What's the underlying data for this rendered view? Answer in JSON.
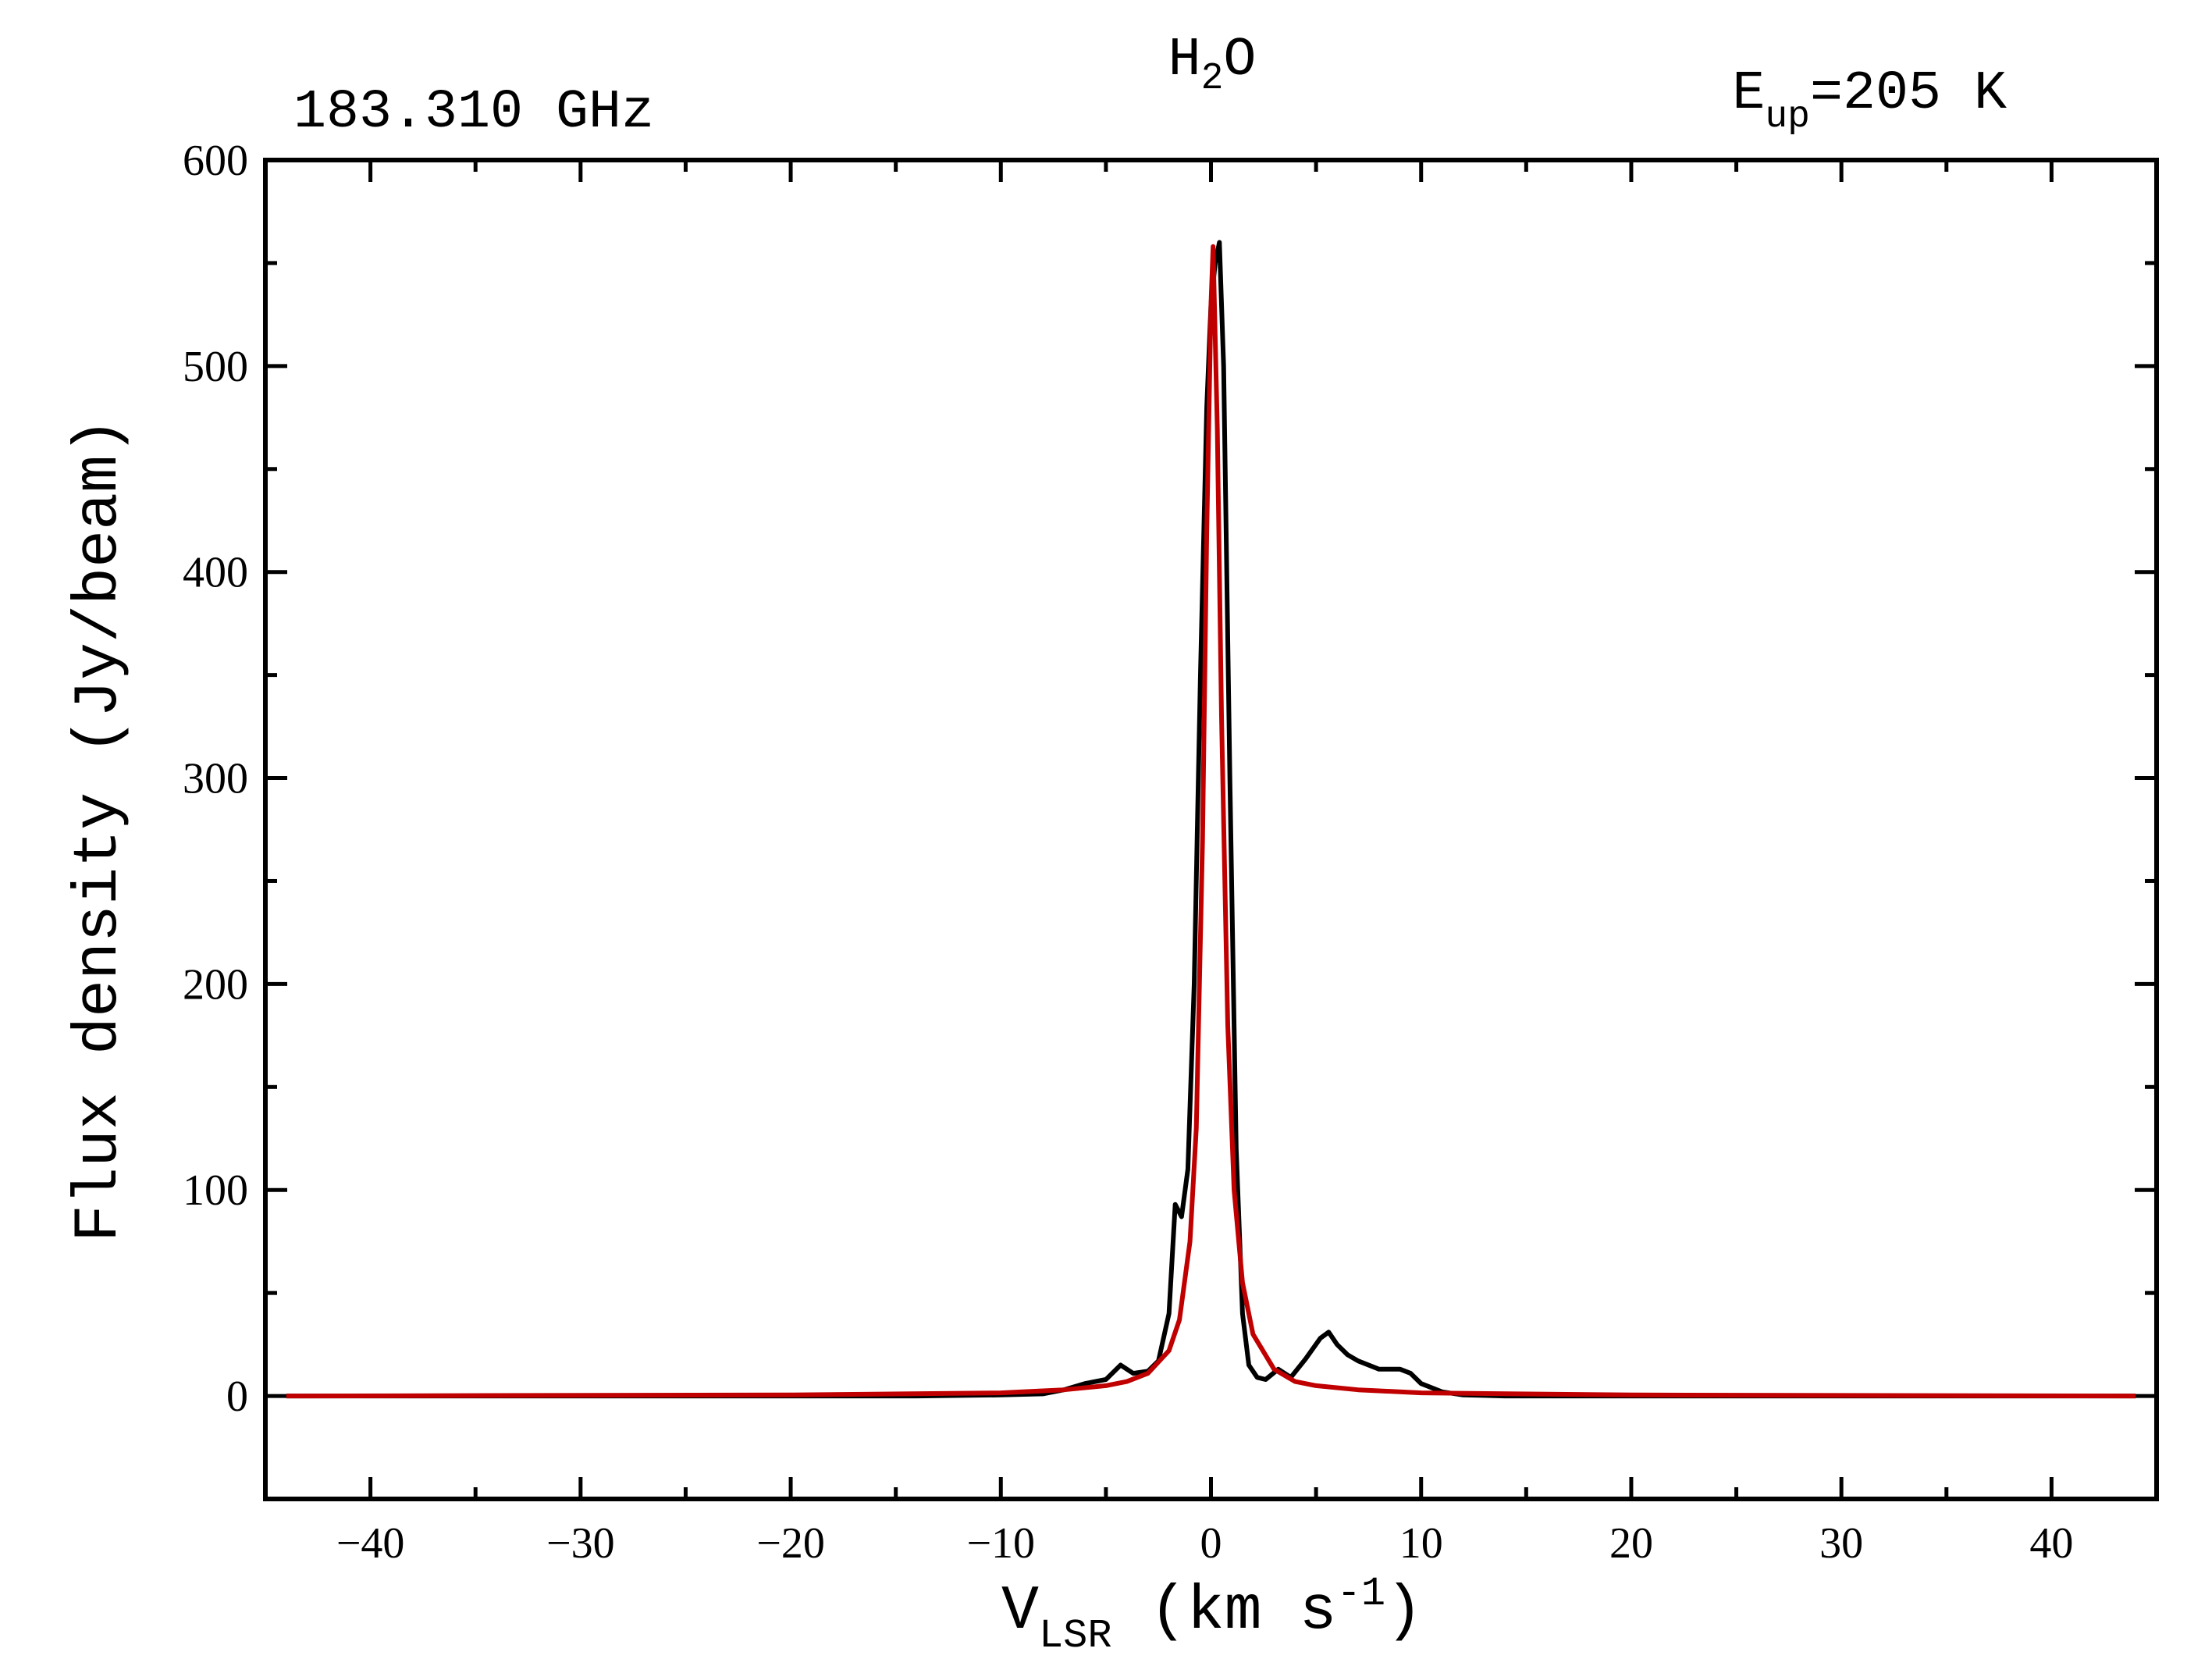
{
  "chart_data": {
    "type": "line",
    "title": {
      "base": "H",
      "sub": "2",
      "rest": "O"
    },
    "annotations": {
      "frequency": "183.310 GHz",
      "energy": {
        "base": "E",
        "sub": "up",
        "rest": "=205 K"
      }
    },
    "x_label": {
      "base": "V",
      "sub": "LSR",
      "rest": " (km s",
      "sup": "-1",
      "end": ")"
    },
    "y_label": "Flux density (Jy/beam)",
    "xlim": [
      -45,
      45
    ],
    "ylim": [
      -50,
      600
    ],
    "xticks": [
      {
        "value": -40,
        "label": "−40"
      },
      {
        "value": -30,
        "label": "−30"
      },
      {
        "value": -20,
        "label": "−20"
      },
      {
        "value": -10,
        "label": "−10"
      },
      0,
      10,
      20,
      30,
      40
    ],
    "xminorticks": [
      -45,
      -35,
      -25,
      -15,
      -5,
      5,
      15,
      25,
      35,
      45
    ],
    "yticks": [
      0,
      100,
      200,
      300,
      400,
      500,
      600
    ],
    "yminorticks": [
      -50,
      50,
      150,
      250,
      350,
      450,
      550
    ],
    "series": [
      {
        "color": "#000000",
        "x": [
          -44,
          -14,
          -10,
          -8,
          -7,
          -6,
          -5,
          -4.3,
          -3.7,
          -3,
          -2.5,
          -2,
          -1.7,
          -1.4,
          -1.1,
          -0.8,
          -0.5,
          -0.2,
          0,
          0.2,
          0.4,
          0.6,
          0.9,
          1.2,
          1.5,
          1.8,
          2.2,
          2.6,
          3.2,
          3.8,
          4.5,
          5.2,
          5.6,
          6,
          6.5,
          7,
          8,
          9,
          9.5,
          10,
          11,
          12,
          14,
          44
        ],
        "values": [
          0,
          0,
          0.5,
          1,
          3,
          6,
          8,
          15,
          11,
          12,
          17,
          40,
          93,
          87,
          110,
          200,
          350,
          480,
          530,
          550,
          560,
          500,
          300,
          120,
          40,
          15,
          9,
          8,
          13,
          9,
          18,
          28,
          31,
          25,
          20,
          17,
          13,
          13,
          11,
          6,
          2,
          0.5,
          0,
          0
        ]
      },
      {
        "color": "#c00000",
        "x": [
          -44,
          -20,
          -10,
          -7,
          -5,
          -4,
          -3,
          -2,
          -1.5,
          -1,
          -0.7,
          -0.4,
          -0.2,
          0,
          0.1,
          0.3,
          0.5,
          0.8,
          1.1,
          1.5,
          2,
          3,
          4,
          5,
          7,
          10,
          20,
          44
        ],
        "values": [
          0,
          0.5,
          1.5,
          3,
          5,
          7,
          11,
          22,
          37,
          75,
          130,
          270,
          420,
          530,
          558,
          470,
          330,
          180,
          100,
          55,
          30,
          13,
          7,
          5,
          3,
          1.5,
          0.5,
          0
        ]
      }
    ]
  }
}
